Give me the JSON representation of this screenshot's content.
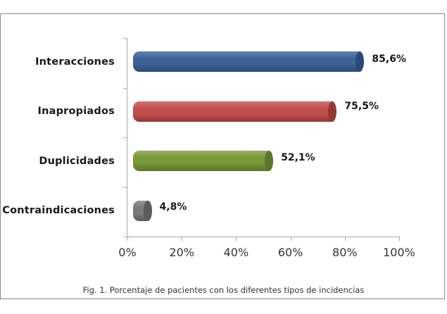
{
  "chart_data": {
    "type": "bar",
    "orientation": "horizontal",
    "style": "3d-cylinder",
    "title": "",
    "caption": "Fig. 1. Porcentaje de pacientes con los diferentes tipos de incidencias",
    "categories": [
      "Interacciones",
      "Inapropiados",
      "Duplicidades",
      "Contraindicaciones"
    ],
    "values": [
      85.6,
      75.5,
      52.1,
      4.8
    ],
    "value_labels": [
      "85,6%",
      "75,5%",
      "52,1%",
      "4,8%"
    ],
    "colors": [
      "#3d6397",
      "#c24f4d",
      "#7a9a3a",
      "#7a7a7a"
    ],
    "cap_colors": [
      "#2a4a75",
      "#943836",
      "#5b7529",
      "#5a5a5a"
    ],
    "xlabel": "",
    "ylabel": "",
    "xlim": [
      0,
      100
    ],
    "x_ticks": [
      "0%",
      "20%",
      "40%",
      "60%",
      "80%",
      "100%"
    ],
    "grid": false,
    "legend": null
  }
}
